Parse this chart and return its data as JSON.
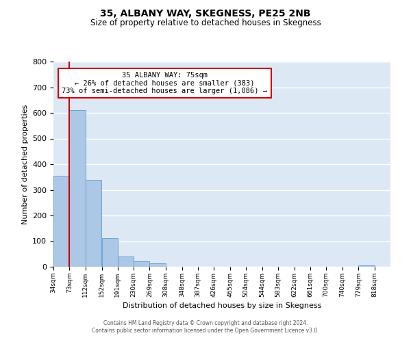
{
  "title": "35, ALBANY WAY, SKEGNESS, PE25 2NB",
  "subtitle": "Size of property relative to detached houses in Skegness",
  "xlabel": "Distribution of detached houses by size in Skegness",
  "ylabel": "Number of detached properties",
  "bar_values": [
    356,
    612,
    340,
    113,
    40,
    22,
    14,
    0,
    0,
    0,
    0,
    0,
    0,
    0,
    0,
    0,
    0,
    0,
    0,
    5
  ],
  "bin_labels": [
    "34sqm",
    "73sqm",
    "112sqm",
    "152sqm",
    "191sqm",
    "230sqm",
    "269sqm",
    "308sqm",
    "348sqm",
    "387sqm",
    "426sqm",
    "465sqm",
    "504sqm",
    "544sqm",
    "583sqm",
    "622sqm",
    "661sqm",
    "700sqm",
    "740sqm",
    "779sqm",
    "818sqm"
  ],
  "bar_color": "#adc8e6",
  "bar_edge_color": "#5b9bd5",
  "background_color": "#dce9f5",
  "grid_color": "#ffffff",
  "property_line_color": "#cc0000",
  "ylim": [
    0,
    800
  ],
  "yticks": [
    0,
    100,
    200,
    300,
    400,
    500,
    600,
    700,
    800
  ],
  "annotation_title": "35 ALBANY WAY: 75sqm",
  "annotation_line1": "← 26% of detached houses are smaller (383)",
  "annotation_line2": "73% of semi-detached houses are larger (1,086) →",
  "annotation_box_color": "#ffffff",
  "annotation_box_edge": "#cc0000",
  "footer_line1": "Contains HM Land Registry data © Crown copyright and database right 2024.",
  "footer_line2": "Contains public sector information licensed under the Open Government Licence v3.0.",
  "bin_edges": [
    34,
    73,
    112,
    152,
    191,
    230,
    269,
    308,
    348,
    387,
    426,
    465,
    504,
    544,
    583,
    622,
    661,
    700,
    740,
    779,
    818
  ],
  "bin_width": 39,
  "n_bins": 20,
  "property_bin_index": 1
}
